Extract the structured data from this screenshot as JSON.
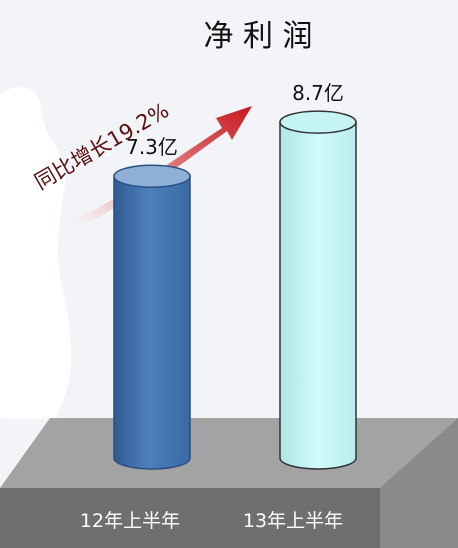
{
  "chart_data": {
    "type": "bar",
    "title": "净 利 润",
    "categories": [
      "12年上半年",
      "13年上半年"
    ],
    "values": [
      7.3,
      8.7
    ],
    "value_labels": [
      "7.3亿",
      "8.7亿"
    ],
    "unit": "亿",
    "annotation": "同比增长19.2%",
    "style": "3d-cylinder",
    "colors": {
      "bar_1": "#4a78b4",
      "bar_2": "#c4f4f4",
      "base": "#9a9a9a",
      "arrow": "#c8171e",
      "background": "#f2f4f8"
    }
  }
}
